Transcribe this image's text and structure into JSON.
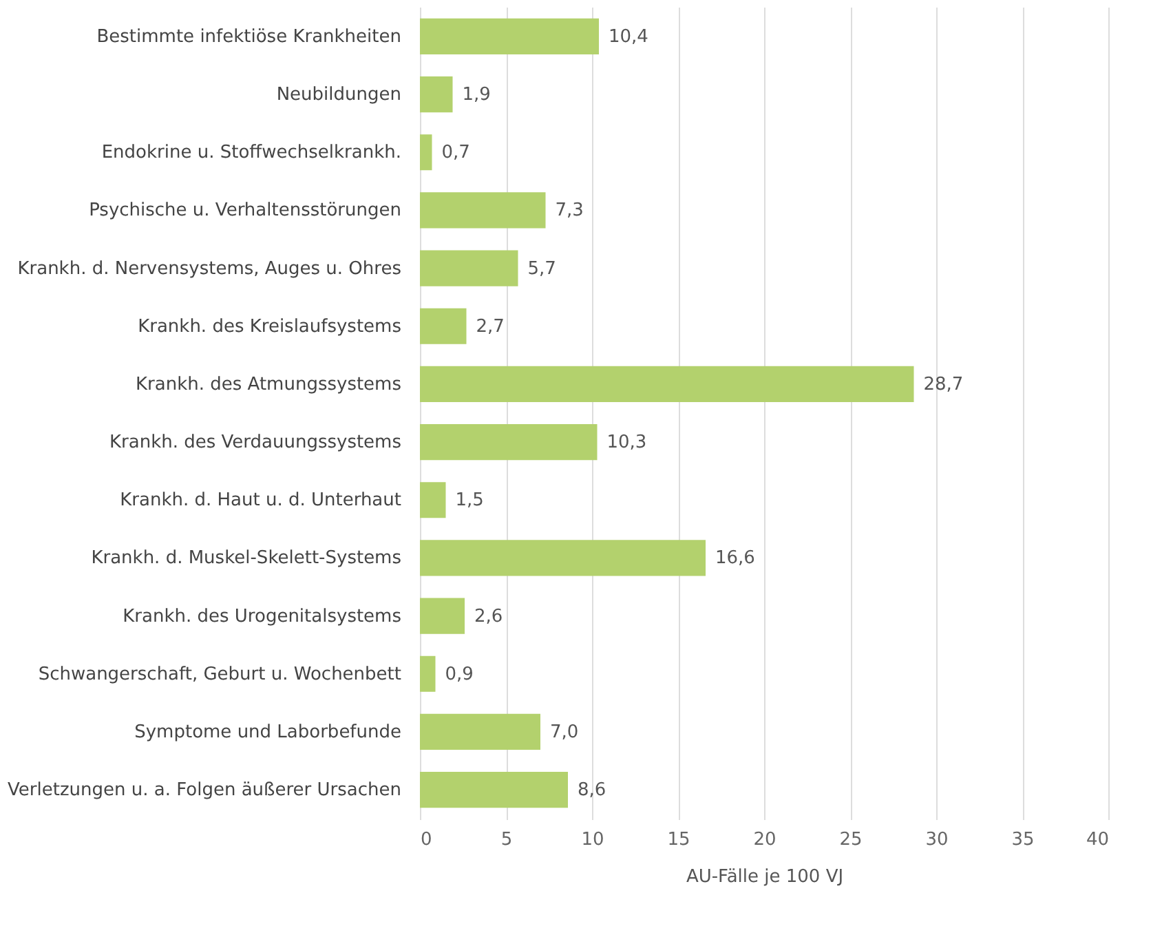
{
  "chart_data": {
    "type": "bar",
    "orientation": "horizontal",
    "xlabel": "AU-Fälle je 100 VJ",
    "categories": [
      "Bestimmte infektiöse Krankheiten",
      "Neubildungen",
      "Endokrine u. Stoffwechselkrankh.",
      "Psychische u. Verhaltensstörungen",
      "Krankh. d. Nervensystems, Auges u. Ohres",
      "Krankh. des Kreislaufsystems",
      "Krankh. des Atmungssystems",
      "Krankh. des Verdauungssystems",
      "Krankh. d. Haut u. d. Unterhaut",
      "Krankh. d. Muskel-Skelett-Systems",
      "Krankh. des Urogenitalsystems",
      "Schwangerschaft, Geburt u. Wochenbett",
      "Symptome und Laborbefunde",
      "Verletzungen u. a. Folgen äußerer Ursachen"
    ],
    "values": [
      10.4,
      1.9,
      0.7,
      7.3,
      5.7,
      2.7,
      28.7,
      10.3,
      1.5,
      16.6,
      2.6,
      0.9,
      7.0,
      8.6
    ],
    "value_labels": [
      "10,4",
      "1,9",
      "0,7",
      "7,3",
      "5,7",
      "2,7",
      "28,7",
      "10,3",
      "1,5",
      "16,6",
      "2,6",
      "0,9",
      "7,0",
      "8,6"
    ],
    "color": "#b3d16d",
    "xlim": [
      0,
      40
    ],
    "xticks": [
      0,
      5,
      10,
      15,
      20,
      25,
      30,
      35,
      40
    ],
    "grid": "x"
  }
}
